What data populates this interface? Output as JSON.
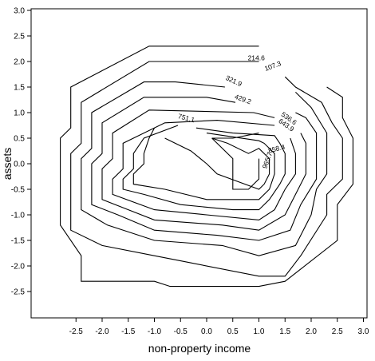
{
  "chart_data": {
    "type": "contour",
    "xlabel": "non-property income",
    "ylabel": "assets",
    "xlim": [
      -3.0,
      3.0
    ],
    "ylim": [
      -3.0,
      3.0
    ],
    "x_ticks": [
      "-2.5",
      "-2.0",
      "-1.5",
      "-1.0",
      "-0.5",
      "0.0",
      "0.5",
      "1.0",
      "1.5",
      "2.0",
      "2.5",
      "3.0"
    ],
    "y_ticks": [
      "3.0",
      "2.5",
      "2.0",
      "1.5",
      "1.0",
      "0.5",
      "0.0",
      "-0.5",
      "-1.0",
      "-1.5",
      "-2.0",
      "-2.5"
    ],
    "grid": false,
    "contours": [
      {
        "level": "107.3",
        "label_at": [
          1.28,
          1.87
        ],
        "label_rotation": -20,
        "points": [
          [
            1.0,
            2.3
          ],
          [
            -1.1,
            2.3
          ],
          [
            -2.6,
            1.5
          ],
          [
            -2.6,
            0.7
          ],
          [
            -2.8,
            0.5
          ],
          [
            -2.8,
            -1.2
          ],
          [
            -2.4,
            -1.8
          ],
          [
            -2.4,
            -2.3
          ],
          [
            -1.0,
            -2.3
          ],
          [
            -0.7,
            -2.4
          ],
          [
            1.0,
            -2.4
          ],
          [
            1.5,
            -2.3
          ],
          [
            2.5,
            -1.5
          ],
          [
            2.5,
            -0.8
          ],
          [
            2.8,
            -0.4
          ],
          [
            2.8,
            0.5
          ],
          [
            2.6,
            0.9
          ],
          [
            2.6,
            1.3
          ],
          [
            2.3,
            1.5
          ]
        ]
      },
      {
        "level": "214.6",
        "label_at": [
          0.95,
          2.02
        ],
        "label_rotation": 0,
        "points": [
          [
            1.0,
            2.0
          ],
          [
            -1.1,
            2.0
          ],
          [
            -2.4,
            1.2
          ],
          [
            -2.4,
            0.4
          ],
          [
            -2.6,
            0.2
          ],
          [
            -2.6,
            -1.3
          ],
          [
            -2.0,
            -1.6
          ],
          [
            -1.0,
            -1.8
          ],
          [
            -0.5,
            -1.9
          ],
          [
            1.0,
            -2.2
          ],
          [
            1.5,
            -2.2
          ],
          [
            1.8,
            -1.8
          ],
          [
            2.3,
            -1.0
          ],
          [
            2.3,
            -0.6
          ],
          [
            2.6,
            -0.3
          ],
          [
            2.6,
            0.5
          ],
          [
            2.4,
            0.8
          ],
          [
            2.2,
            1.2
          ],
          [
            1.7,
            1.5
          ],
          [
            1.5,
            1.7
          ]
        ]
      },
      {
        "level": "321.9",
        "label_at": [
          0.5,
          1.58
        ],
        "label_rotation": 25,
        "points": [
          [
            0.35,
            1.5
          ],
          [
            -0.6,
            1.6
          ],
          [
            -1.2,
            1.6
          ],
          [
            -2.2,
            1.0
          ],
          [
            -2.2,
            0.3
          ],
          [
            -2.4,
            0.1
          ],
          [
            -2.4,
            -0.9
          ],
          [
            -1.9,
            -1.2
          ],
          [
            -1.0,
            -1.5
          ],
          [
            0.3,
            -1.6
          ],
          [
            1.0,
            -1.8
          ],
          [
            1.7,
            -1.6
          ],
          [
            2.0,
            -1.0
          ],
          [
            2.1,
            -0.5
          ],
          [
            2.3,
            -0.2
          ],
          [
            2.3,
            0.6
          ],
          [
            2.0,
            1.1
          ],
          [
            1.7,
            1.4
          ]
        ]
      },
      {
        "level": "429.2",
        "label_at": [
          0.68,
          1.22
        ],
        "label_rotation": 20,
        "points": [
          [
            0.55,
            1.2
          ],
          [
            0.0,
            1.3
          ],
          [
            -1.2,
            1.3
          ],
          [
            -2.0,
            0.8
          ],
          [
            -2.0,
            0.2
          ],
          [
            -2.2,
            0.0
          ],
          [
            -2.2,
            -0.8
          ],
          [
            -1.7,
            -1.0
          ],
          [
            -1.0,
            -1.3
          ],
          [
            0.2,
            -1.4
          ],
          [
            1.0,
            -1.5
          ],
          [
            1.6,
            -1.3
          ],
          [
            1.8,
            -0.8
          ],
          [
            2.1,
            -0.3
          ],
          [
            2.1,
            0.6
          ],
          [
            1.9,
            0.9
          ],
          [
            1.7,
            1.0
          ]
        ]
      },
      {
        "level": "536.6",
        "label_at": [
          1.55,
          0.85
        ],
        "label_rotation": 35,
        "points": [
          [
            1.3,
            0.9
          ],
          [
            0.9,
            1.0
          ],
          [
            -1.1,
            1.05
          ],
          [
            -1.8,
            0.6
          ],
          [
            -1.8,
            0.1
          ],
          [
            -2.0,
            -0.1
          ],
          [
            -2.0,
            -0.7
          ],
          [
            -1.5,
            -0.9
          ],
          [
            -1.0,
            -1.1
          ],
          [
            0.3,
            -1.2
          ],
          [
            1.0,
            -1.3
          ],
          [
            1.5,
            -1.0
          ],
          [
            1.7,
            -0.6
          ],
          [
            1.9,
            -0.2
          ],
          [
            1.9,
            0.4
          ],
          [
            1.8,
            0.6
          ]
        ]
      },
      {
        "level": "643.9",
        "label_at": [
          1.5,
          0.72
        ],
        "label_rotation": 35,
        "points": [
          [
            1.3,
            0.75
          ],
          [
            0.2,
            0.85
          ],
          [
            -0.8,
            0.8
          ],
          [
            -1.6,
            0.4
          ],
          [
            -1.6,
            -0.1
          ],
          [
            -1.8,
            -0.3
          ],
          [
            -1.8,
            -0.6
          ],
          [
            -1.0,
            -0.9
          ],
          [
            0.0,
            -1.0
          ],
          [
            1.0,
            -1.1
          ],
          [
            1.3,
            -0.9
          ],
          [
            1.5,
            -0.5
          ],
          [
            1.7,
            -0.2
          ],
          [
            1.7,
            0.2
          ],
          [
            1.6,
            0.5
          ]
        ]
      },
      {
        "level": "751.1",
        "label_at": [
          -0.4,
          0.85
        ],
        "label_rotation": 15,
        "points": [
          [
            -0.55,
            0.75
          ],
          [
            -1.2,
            0.5
          ],
          [
            -1.4,
            0.2
          ],
          [
            -1.4,
            -0.1
          ],
          [
            -1.6,
            -0.3
          ],
          [
            -1.6,
            -0.5
          ],
          [
            -1.2,
            -0.6
          ],
          [
            -0.5,
            -0.8
          ],
          [
            0.5,
            -0.9
          ],
          [
            1.0,
            -0.9
          ],
          [
            1.2,
            -0.7
          ],
          [
            1.4,
            -0.4
          ],
          [
            1.5,
            -0.2
          ],
          [
            1.5,
            0.2
          ],
          [
            1.4,
            0.4
          ],
          [
            1.3,
            0.55
          ],
          [
            0.5,
            0.6
          ],
          [
            -0.2,
            0.7
          ]
        ]
      },
      {
        "level": "858.4",
        "label_at": [
          1.35,
          0.25
        ],
        "label_rotation": -15,
        "points": [
          [
            -1.0,
            0.7
          ],
          [
            -1.1,
            0.5
          ],
          [
            -1.2,
            0.2
          ],
          [
            -1.2,
            0.0
          ],
          [
            -1.4,
            -0.2
          ],
          [
            -1.4,
            -0.4
          ],
          [
            -0.8,
            -0.5
          ],
          [
            0.0,
            -0.7
          ],
          [
            1.0,
            -0.7
          ],
          [
            1.2,
            -0.5
          ],
          [
            1.3,
            -0.2
          ],
          [
            1.3,
            0.2
          ],
          [
            1.1,
            0.4
          ],
          [
            1.0,
            0.45
          ],
          [
            0.0,
            0.6
          ]
        ]
      },
      {
        "level": "965.7",
        "label_at": [
          1.2,
          0.05
        ],
        "label_rotation": -70,
        "points": [
          [
            -0.8,
            0.5
          ],
          [
            -0.3,
            0.25
          ],
          [
            0.0,
            0.0
          ],
          [
            0.2,
            -0.2
          ],
          [
            1.0,
            -0.5
          ],
          [
            1.1,
            -0.4
          ],
          [
            1.2,
            -0.2
          ],
          [
            1.2,
            0.1
          ],
          [
            1.0,
            0.3
          ],
          [
            0.8,
            0.2
          ],
          [
            0.4,
            0.4
          ],
          [
            0.1,
            0.5
          ]
        ]
      },
      {
        "level": "",
        "points": [
          [
            0.1,
            0.5
          ],
          [
            0.5,
            0.5
          ],
          [
            1.0,
            0.6
          ]
        ]
      },
      {
        "level": "",
        "points": [
          [
            0.1,
            0.5
          ],
          [
            0.5,
            0.1
          ],
          [
            0.5,
            -0.5
          ],
          [
            0.8,
            -0.5
          ],
          [
            1.0,
            -0.3
          ],
          [
            1.0,
            0.1
          ]
        ]
      }
    ]
  }
}
